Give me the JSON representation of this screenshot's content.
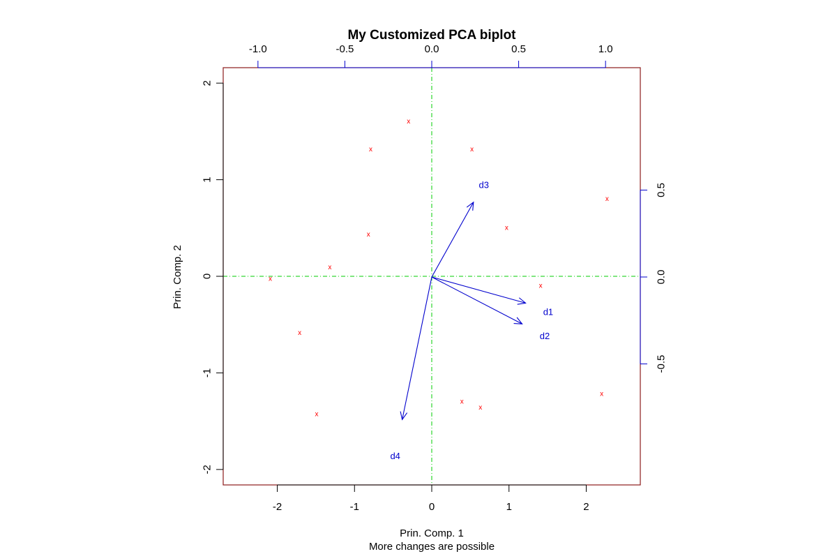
{
  "chart_data": {
    "type": "scatter",
    "title": "My Customized PCA biplot",
    "xlabel": "Prin. Comp. 1",
    "ylabel": "Prin. Comp. 2",
    "subtitle": "More changes are possible",
    "xlim": [
      -2.7,
      2.7
    ],
    "ylim": [
      -2.16,
      2.16
    ],
    "x_ticks": [
      -2,
      -1,
      0,
      1,
      2
    ],
    "y_ticks": [
      -2,
      -1,
      0,
      1,
      2
    ],
    "loading_lim": [
      -1.0,
      1.0
    ],
    "top_ticks": [
      -1.0,
      -0.5,
      0.0,
      0.5,
      1.0
    ],
    "top_tick_labels": [
      "-1.0",
      "-0.5",
      "0.0",
      "0.5",
      "1.0"
    ],
    "right_ticks": [
      -0.5,
      0.0,
      0.5
    ],
    "right_tick_labels": [
      "-0.5",
      "0.0",
      "0.5"
    ],
    "point_marker": "x",
    "points": [
      {
        "x": -0.3,
        "y": 1.6
      },
      {
        "x": -0.79,
        "y": 1.31
      },
      {
        "x": 0.52,
        "y": 1.31
      },
      {
        "x": 2.27,
        "y": 0.8
      },
      {
        "x": 0.97,
        "y": 0.5
      },
      {
        "x": -0.82,
        "y": 0.43
      },
      {
        "x": -1.32,
        "y": 0.09
      },
      {
        "x": -2.09,
        "y": -0.03
      },
      {
        "x": 1.41,
        "y": -0.1
      },
      {
        "x": -1.71,
        "y": -0.59
      },
      {
        "x": 2.2,
        "y": -1.22
      },
      {
        "x": 0.39,
        "y": -1.3
      },
      {
        "x": 0.63,
        "y": -1.36
      },
      {
        "x": -1.49,
        "y": -1.43
      }
    ],
    "loadings": [
      {
        "name": "d1",
        "x": 0.54,
        "y": -0.15,
        "label_x": 0.67,
        "label_y": -0.2
      },
      {
        "name": "d2",
        "x": 0.52,
        "y": -0.27,
        "label_x": 0.65,
        "label_y": -0.34
      },
      {
        "name": "d3",
        "x": 0.24,
        "y": 0.43,
        "label_x": 0.3,
        "label_y": 0.53
      },
      {
        "name": "d4",
        "x": -0.17,
        "y": -0.82,
        "label_x": -0.21,
        "label_y": -1.03
      }
    ],
    "colors": {
      "points": "#ff0000",
      "arrows": "#0000cd",
      "zero_lines": "#00cd00",
      "box": "#8b1a1a",
      "axis_blue": "#0000cd",
      "text": "#000000"
    }
  }
}
